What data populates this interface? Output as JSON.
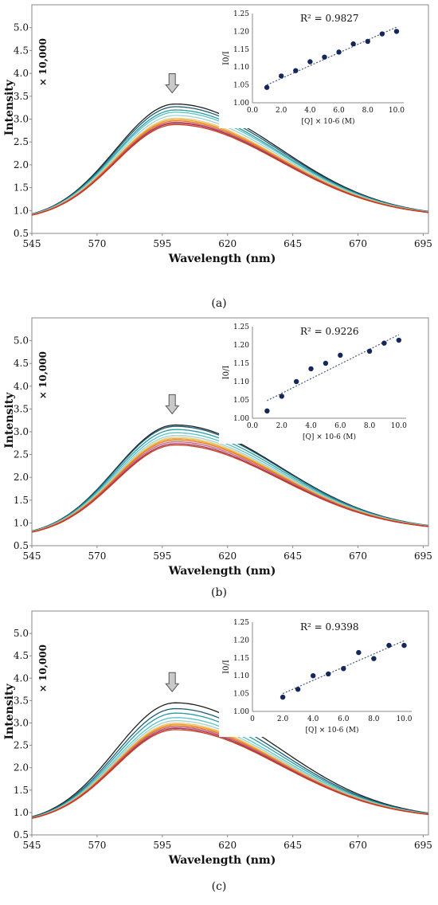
{
  "figure": {
    "panel_captions": [
      "(a)",
      "(b)",
      "(c)"
    ],
    "main_ylabel": "Intensity",
    "main_multiplier": "× 10,000",
    "main_xlabel": "Wavelength (nm)",
    "inset_ylabel": "I0/I",
    "inset_xlabel": "[Q] × 10-6 (M)"
  },
  "colors": {
    "spectra": [
      "#1f1f1f",
      "#1b5e73",
      "#2a9aa6",
      "#58c3c4",
      "#9ad3cf",
      "#e7c98a",
      "#f0a020",
      "#e07a1f",
      "#c85a8a",
      "#a03a5a",
      "#cc3a1a"
    ],
    "inset_points": "#14285a",
    "fit_line": "#4a5a7a",
    "arrow_fill": "#c9c9c9",
    "axis": "#888888"
  },
  "chart_data": [
    {
      "type": "line",
      "panel": "a",
      "title": "",
      "xlabel": "Wavelength (nm)",
      "ylabel": "Intensity",
      "multiplier": "× 10,000",
      "xlim": [
        545,
        697
      ],
      "ylim": [
        0.5,
        5.5
      ],
      "xticks": [
        545,
        570,
        595,
        620,
        645,
        670,
        695
      ],
      "yticks": [
        0.5,
        1.0,
        1.5,
        2.0,
        2.5,
        3.0,
        3.5,
        4.0,
        4.5,
        5.0
      ],
      "peak_x": 600,
      "start_x": 545,
      "start_y": 0.78,
      "end_x": 697,
      "end_y": 0.85,
      "peak_values": [
        3.33,
        3.27,
        3.2,
        3.15,
        3.08,
        3.02,
        2.99,
        2.96,
        2.93,
        2.91,
        2.88
      ],
      "arrow_at": 600,
      "inset": {
        "type": "scatter",
        "r2_text": "R² = 0.9827",
        "ylabel": "I0/I",
        "xlabel": "[Q] × 10-6 (M)",
        "xlim": [
          0,
          10.5
        ],
        "ylim": [
          1.0,
          1.25
        ],
        "xticks": [
          0.0,
          2.0,
          4.0,
          6.0,
          8.0,
          10.0
        ],
        "yticks": [
          1.0,
          1.05,
          1.1,
          1.15,
          1.2,
          1.25
        ],
        "x": [
          1,
          2,
          3,
          4,
          5,
          6,
          7,
          8,
          9,
          10
        ],
        "y": [
          1.043,
          1.075,
          1.09,
          1.115,
          1.128,
          1.142,
          1.165,
          1.172,
          1.193,
          1.2
        ],
        "fit": [
          [
            1,
            1.05
          ],
          [
            10,
            1.212
          ]
        ]
      }
    },
    {
      "type": "line",
      "panel": "b",
      "title": "",
      "xlabel": "Wavelength (nm)",
      "ylabel": "Intensity",
      "multiplier": "× 10,000",
      "xlim": [
        545,
        697
      ],
      "ylim": [
        0.5,
        5.5
      ],
      "xticks": [
        545,
        570,
        595,
        620,
        645,
        670,
        695
      ],
      "yticks": [
        0.5,
        1.0,
        1.5,
        2.0,
        2.5,
        3.0,
        3.5,
        4.0,
        4.5,
        5.0
      ],
      "peak_x": 600,
      "start_x": 545,
      "start_y": 0.68,
      "end_x": 697,
      "end_y": 0.82,
      "peak_values": [
        3.15,
        3.12,
        3.05,
        2.98,
        2.92,
        2.88,
        2.85,
        2.82,
        2.78,
        2.74,
        2.71
      ],
      "arrow_at": 600,
      "inset": {
        "type": "scatter",
        "r2_text": "R² = 0.9226",
        "ylabel": "I0/I",
        "xlabel": "[Q] × 10-6 (M)",
        "xlim": [
          0,
          10.5
        ],
        "ylim": [
          1.0,
          1.25
        ],
        "xticks": [
          0.0,
          2.0,
          4.0,
          6.0,
          8.0,
          10.0
        ],
        "yticks": [
          1.0,
          1.05,
          1.1,
          1.15,
          1.2,
          1.25
        ],
        "x": [
          1,
          2,
          3,
          4,
          5,
          6,
          8,
          9,
          10
        ],
        "y": [
          1.02,
          1.06,
          1.1,
          1.135,
          1.15,
          1.172,
          1.183,
          1.205,
          1.213
        ],
        "fit": [
          [
            1,
            1.048
          ],
          [
            10,
            1.228
          ]
        ]
      }
    },
    {
      "type": "line",
      "panel": "c",
      "title": "",
      "xlabel": "Wavelength (nm)",
      "ylabel": "Intensity",
      "multiplier": "× 10,000",
      "xlim": [
        545,
        697
      ],
      "ylim": [
        0.5,
        5.5
      ],
      "xticks": [
        545,
        570,
        595,
        620,
        645,
        670,
        695
      ],
      "yticks": [
        0.5,
        1.0,
        1.5,
        2.0,
        2.5,
        3.0,
        3.5,
        4.0,
        4.5,
        5.0
      ],
      "peak_x": 600,
      "start_x": 545,
      "start_y": 0.75,
      "end_x": 697,
      "end_y": 0.85,
      "peak_values": [
        3.45,
        3.32,
        3.22,
        3.12,
        3.05,
        3.0,
        2.97,
        2.94,
        2.91,
        2.88,
        2.85
      ],
      "arrow_at": 600,
      "inset": {
        "type": "scatter",
        "r2_text": "R² = 0.9398",
        "ylabel": "I0/I",
        "xlabel": "[Q] × 10-6 (M)",
        "xlim": [
          0,
          10.5
        ],
        "ylim": [
          1.0,
          1.25
        ],
        "xticks": [
          0,
          2.0,
          4.0,
          6.0,
          8.0,
          10.0
        ],
        "yticks": [
          1.0,
          1.05,
          1.1,
          1.15,
          1.2,
          1.25
        ],
        "x": [
          2,
          3,
          4,
          5,
          6,
          7,
          8,
          9,
          10
        ],
        "y": [
          1.04,
          1.062,
          1.1,
          1.105,
          1.12,
          1.165,
          1.148,
          1.185,
          1.185
        ],
        "fit": [
          [
            2,
            1.05
          ],
          [
            10,
            1.198
          ]
        ]
      }
    }
  ]
}
